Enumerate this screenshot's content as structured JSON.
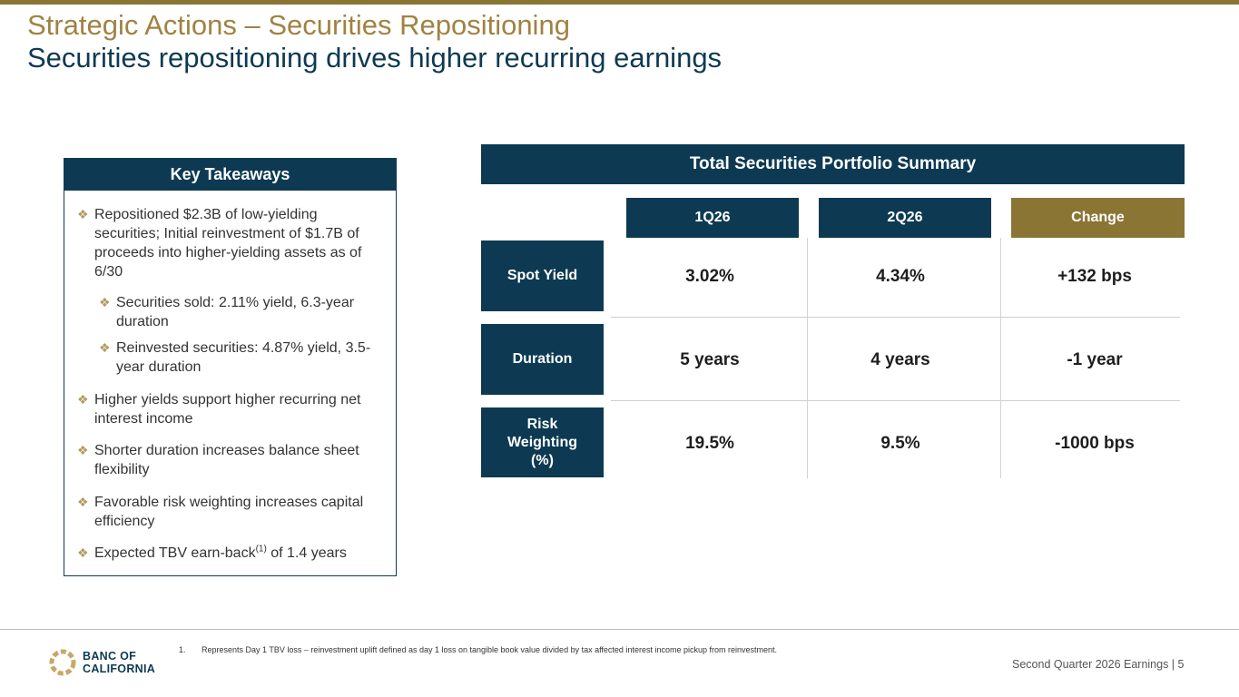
{
  "header": {
    "title": "Strategic Actions – Securities Repositioning",
    "subtitle": "Securities repositioning drives higher recurring earnings"
  },
  "key_takeaways": {
    "heading": "Key Takeaways",
    "bullets": [
      "Repositioned $2.3B of low-yielding securities; Initial reinvestment of $1.7B of proceeds into higher-yielding assets as of 6/30",
      "Securities sold: 2.11% yield, 6.3-year duration",
      "Reinvested securities: 4.87% yield, 3.5-year duration",
      "Higher yields support higher recurring net interest income",
      "Shorter duration increases balance sheet flexibility",
      "Favorable risk weighting increases capital efficiency"
    ],
    "last_bullet": {
      "before": "Expected TBV earn-back",
      "sup": "(1)",
      "after": " of 1.4 years"
    },
    "bullet_glyph": "❖"
  },
  "portfolio": {
    "heading": "Total Securities Portfolio Summary",
    "columns": [
      "1Q26",
      "2Q26",
      "Change"
    ],
    "rows": [
      {
        "label": "Spot Yield",
        "values": [
          "3.02%",
          "4.34%",
          "+132 bps"
        ]
      },
      {
        "label": "Duration",
        "values": [
          "5 years",
          "4 years",
          "-1 year"
        ]
      },
      {
        "label": "Risk Weighting (%)",
        "values": [
          "19.5%",
          "9.5%",
          "-1000 bps"
        ]
      }
    ]
  },
  "footer": {
    "logo_line1": "BANC OF",
    "logo_line2": "CALIFORNIA",
    "footnote_number": "1.",
    "footnote": "Represents Day 1 TBV loss – reinvestment uplift defined as day 1 loss on tangible book value divided by tax affected interest income pickup from reinvestment.",
    "page_label": "Second Quarter 2026 Earnings |  5"
  },
  "colors": {
    "navy": "#0d3a52",
    "gold": "#8a7535",
    "title_gold": "#a08242",
    "bullet_gold": "#b39a5e"
  }
}
